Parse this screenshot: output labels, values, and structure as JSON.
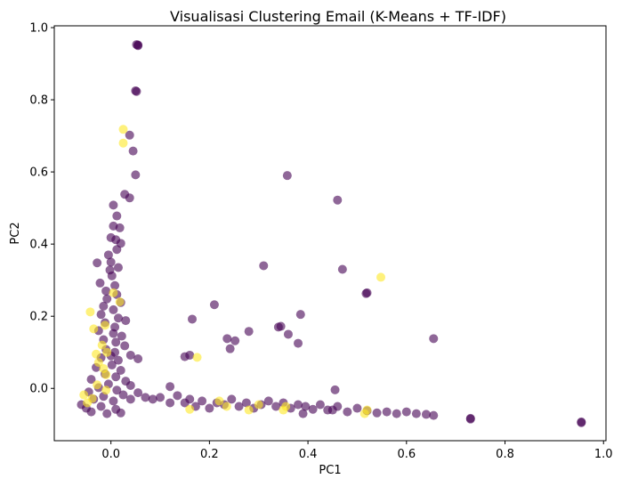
{
  "chart_data": {
    "type": "scatter",
    "title": "Visualisasi Clustering Email (K-Means + TF-IDF)",
    "xlabel": "PC1",
    "ylabel": "PC2",
    "xlim": [
      -0.115,
      1.005
    ],
    "ylim": [
      -0.145,
      1.005
    ],
    "xticks": [
      "0.0",
      "0.2",
      "0.4",
      "0.6",
      "0.8",
      "1.0"
    ],
    "yticks": [
      "0.0",
      "0.2",
      "0.4",
      "0.6",
      "0.8",
      "1.0"
    ],
    "grid": false,
    "legend": "none",
    "colors": {
      "cluster_0": "#440154",
      "cluster_1": "#fde725"
    },
    "marker_opacity": 0.6,
    "series": [
      {
        "color": "#440154",
        "points": [
          [
            0.055,
            0.952
          ],
          [
            0.055,
            0.95
          ],
          [
            0.052,
            0.953
          ],
          [
            0.05,
            0.825
          ],
          [
            0.052,
            0.823
          ],
          [
            0.038,
            0.702
          ],
          [
            0.045,
            0.658
          ],
          [
            0.05,
            0.592
          ],
          [
            0.028,
            0.538
          ],
          [
            0.038,
            0.528
          ],
          [
            0.005,
            0.508
          ],
          [
            0.012,
            0.478
          ],
          [
            0.005,
            0.45
          ],
          [
            0.018,
            0.445
          ],
          [
            0.0,
            0.418
          ],
          [
            0.01,
            0.412
          ],
          [
            0.02,
            0.402
          ],
          [
            0.012,
            0.385
          ],
          [
            -0.005,
            0.37
          ],
          [
            0.0,
            0.35
          ],
          [
            -0.028,
            0.348
          ],
          [
            0.015,
            0.335
          ],
          [
            -0.002,
            0.328
          ],
          [
            0.002,
            0.312
          ],
          [
            -0.022,
            0.292
          ],
          [
            0.008,
            0.285
          ],
          [
            -0.01,
            0.27
          ],
          [
            0.012,
            0.26
          ],
          [
            -0.008,
            0.248
          ],
          [
            0.02,
            0.238
          ],
          [
            -0.015,
            0.228
          ],
          [
            0.005,
            0.218
          ],
          [
            -0.02,
            0.205
          ],
          [
            0.015,
            0.195
          ],
          [
            0.03,
            0.188
          ],
          [
            -0.012,
            0.182
          ],
          [
            0.008,
            0.17
          ],
          [
            -0.025,
            0.16
          ],
          [
            0.005,
            0.152
          ],
          [
            0.022,
            0.145
          ],
          [
            -0.015,
            0.135
          ],
          [
            0.01,
            0.128
          ],
          [
            0.028,
            0.118
          ],
          [
            -0.01,
            0.108
          ],
          [
            0.008,
            0.1
          ],
          [
            0.04,
            0.092
          ],
          [
            -0.02,
            0.085
          ],
          [
            0.015,
            0.078
          ],
          [
            0.055,
            0.082
          ],
          [
            0.002,
            0.065
          ],
          [
            -0.03,
            0.058
          ],
          [
            0.02,
            0.05
          ],
          [
            -0.012,
            0.04
          ],
          [
            0.01,
            0.032
          ],
          [
            -0.04,
            0.025
          ],
          [
            0.03,
            0.02
          ],
          [
            -0.005,
            0.012
          ],
          [
            0.04,
            0.008
          ],
          [
            -0.025,
            0.002
          ],
          [
            0.012,
            -0.005
          ],
          [
            0.055,
            -0.012
          ],
          [
            -0.045,
            -0.01
          ],
          [
            0.025,
            -0.018
          ],
          [
            -0.015,
            -0.022
          ],
          [
            0.07,
            -0.025
          ],
          [
            -0.035,
            -0.03
          ],
          [
            0.005,
            -0.035
          ],
          [
            0.04,
            -0.03
          ],
          [
            -0.06,
            -0.045
          ],
          [
            -0.05,
            -0.055
          ],
          [
            -0.02,
            -0.05
          ],
          [
            0.01,
            -0.058
          ],
          [
            -0.04,
            -0.065
          ],
          [
            -0.008,
            -0.07
          ],
          [
            0.02,
            -0.068
          ],
          [
            0.085,
            -0.03
          ],
          [
            0.1,
            -0.025
          ],
          [
            0.12,
            0.005
          ],
          [
            0.135,
            -0.02
          ],
          [
            0.15,
            -0.04
          ],
          [
            0.16,
            -0.03
          ],
          [
            0.172,
            -0.05
          ],
          [
            0.185,
            -0.035
          ],
          [
            0.2,
            -0.055
          ],
          [
            0.215,
            -0.04
          ],
          [
            0.23,
            -0.045
          ],
          [
            0.245,
            -0.03
          ],
          [
            0.26,
            -0.05
          ],
          [
            0.275,
            -0.04
          ],
          [
            0.29,
            -0.055
          ],
          [
            0.305,
            -0.045
          ],
          [
            0.32,
            -0.035
          ],
          [
            0.335,
            -0.05
          ],
          [
            0.35,
            -0.04
          ],
          [
            0.365,
            -0.055
          ],
          [
            0.38,
            -0.045
          ],
          [
            0.395,
            -0.05
          ],
          [
            0.41,
            -0.058
          ],
          [
            0.425,
            -0.045
          ],
          [
            0.44,
            -0.06
          ],
          [
            0.46,
            -0.05
          ],
          [
            0.48,
            -0.065
          ],
          [
            0.5,
            -0.055
          ],
          [
            0.52,
            -0.062
          ],
          [
            0.54,
            -0.068
          ],
          [
            0.56,
            -0.065
          ],
          [
            0.58,
            -0.07
          ],
          [
            0.6,
            -0.065
          ],
          [
            0.62,
            -0.07
          ],
          [
            0.64,
            -0.072
          ],
          [
            0.655,
            -0.075
          ],
          [
            0.73,
            -0.085
          ],
          [
            0.73,
            -0.083
          ],
          [
            0.955,
            -0.095
          ],
          [
            0.955,
            -0.093
          ],
          [
            0.358,
            0.59
          ],
          [
            0.46,
            0.522
          ],
          [
            0.47,
            0.33
          ],
          [
            0.31,
            0.34
          ],
          [
            0.518,
            0.263
          ],
          [
            0.52,
            0.265
          ],
          [
            0.385,
            0.205
          ],
          [
            0.21,
            0.232
          ],
          [
            0.165,
            0.192
          ],
          [
            0.345,
            0.172
          ],
          [
            0.36,
            0.15
          ],
          [
            0.34,
            0.17
          ],
          [
            0.28,
            0.158
          ],
          [
            0.252,
            0.132
          ],
          [
            0.236,
            0.138
          ],
          [
            0.242,
            0.11
          ],
          [
            0.38,
            0.125
          ],
          [
            0.655,
            0.138
          ],
          [
            0.15,
            0.088
          ],
          [
            0.16,
            0.092
          ],
          [
            0.455,
            -0.004
          ],
          [
            0.45,
            -0.06
          ],
          [
            0.39,
            -0.07
          ],
          [
            0.12,
            -0.04
          ],
          [
            0.0,
            0.09
          ]
        ]
      },
      {
        "color": "#fde725",
        "points": [
          [
            0.025,
            0.718
          ],
          [
            0.025,
            0.68
          ],
          [
            -0.042,
            0.212
          ],
          [
            0.548,
            0.308
          ],
          [
            0.175,
            0.086
          ],
          [
            -0.035,
            0.165
          ],
          [
            -0.012,
            0.175
          ],
          [
            -0.018,
            0.12
          ],
          [
            -0.03,
            0.095
          ],
          [
            -0.025,
            0.072
          ],
          [
            -0.015,
            0.055
          ],
          [
            -0.01,
            0.038
          ],
          [
            -0.028,
            0.01
          ],
          [
            -0.01,
            -0.005
          ],
          [
            -0.038,
            -0.028
          ],
          [
            -0.055,
            -0.018
          ],
          [
            -0.048,
            -0.04
          ],
          [
            0.16,
            -0.058
          ],
          [
            0.22,
            -0.035
          ],
          [
            0.235,
            -0.05
          ],
          [
            0.3,
            -0.045
          ],
          [
            0.28,
            -0.06
          ],
          [
            0.35,
            -0.06
          ],
          [
            0.355,
            -0.05
          ],
          [
            0.52,
            -0.06
          ],
          [
            0.515,
            -0.07
          ],
          [
            0.018,
            0.24
          ],
          [
            0.005,
            0.265
          ],
          [
            -0.008,
            0.1
          ]
        ]
      }
    ]
  }
}
